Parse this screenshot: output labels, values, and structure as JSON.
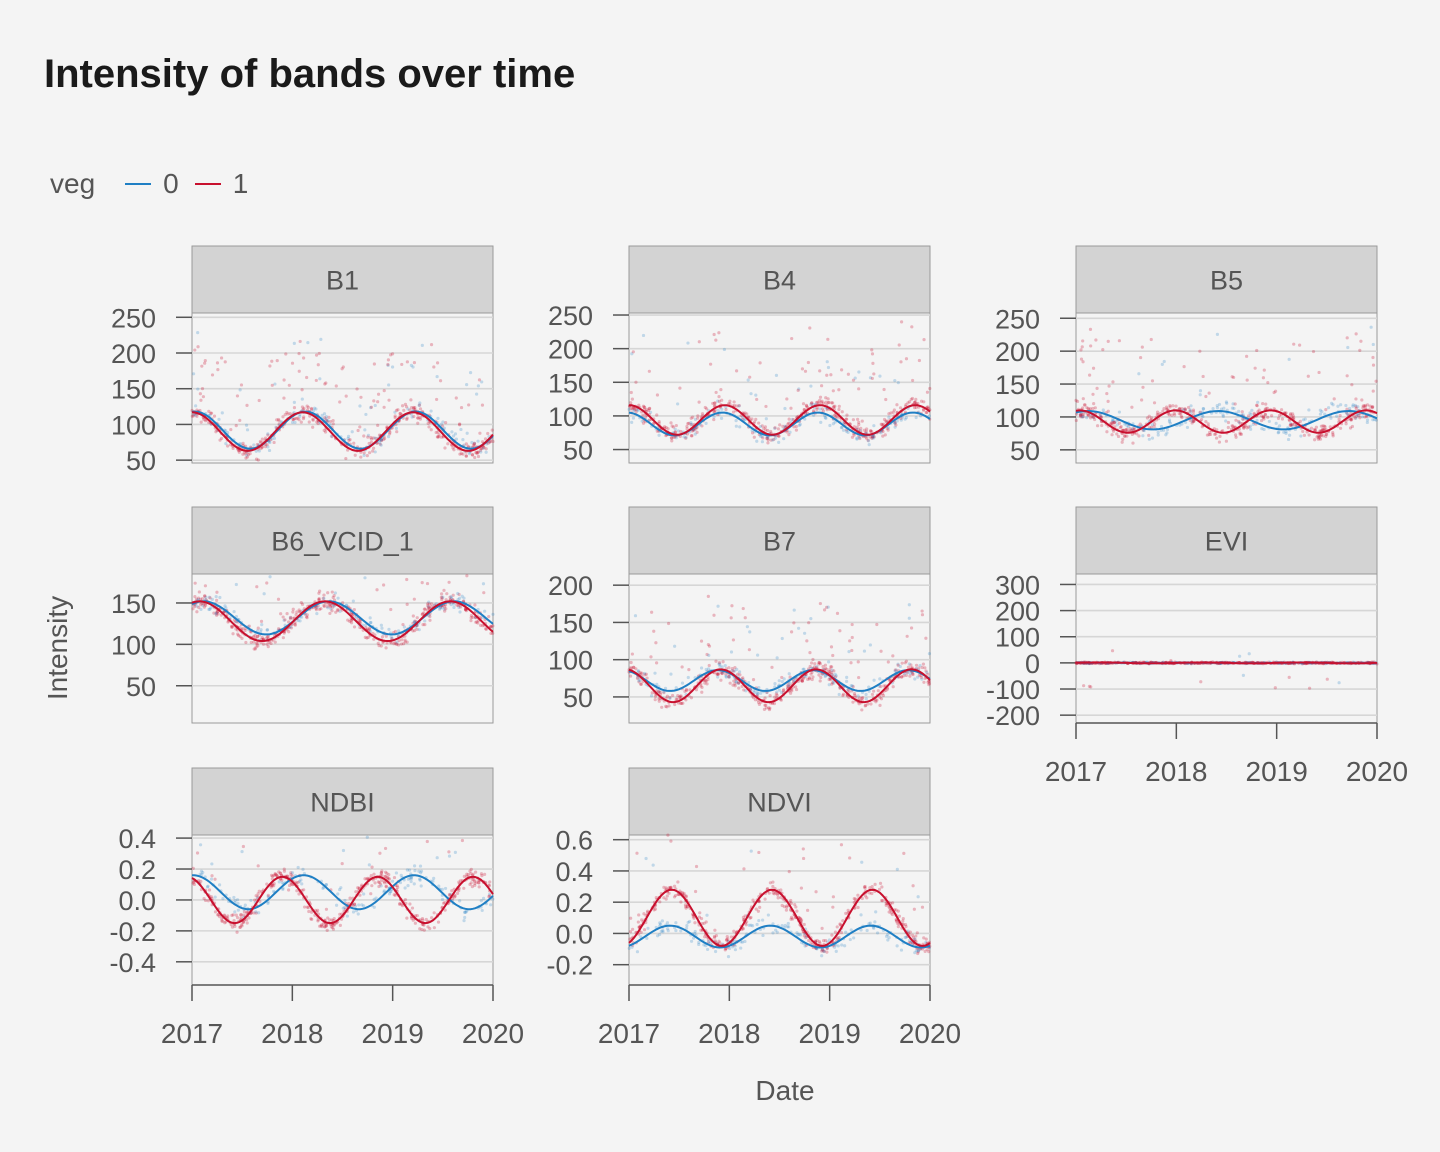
{
  "chart_data": {
    "type": "scatter",
    "title": "Intensity of bands over time",
    "xlabel": "Date",
    "ylabel": "Intensity",
    "legend": {
      "title": "veg",
      "placement": "top-left",
      "entries": [
        {
          "name": "0",
          "color": "#1f7fc4"
        },
        {
          "name": "1",
          "color": "#c8102e"
        }
      ]
    },
    "grid": true,
    "x_ticks": [
      "2017",
      "2018",
      "2019",
      "2020"
    ],
    "xlim": [
      2017,
      2020
    ],
    "panels": [
      {
        "name": "B1",
        "ylim": [
          46,
          256
        ],
        "yticks": [
          50,
          100,
          150,
          200,
          250
        ],
        "ytick_labels": [
          "50",
          "100",
          "150",
          "200",
          "250"
        ],
        "curve0": {
          "base": 92,
          "amp": 26,
          "period": 1.1,
          "phase": 1.4
        },
        "curve1": {
          "base": 90,
          "amp": 27,
          "period": 1.1,
          "phase": 1.55
        },
        "spikes": 150
      },
      {
        "name": "B4",
        "ylim": [
          30,
          253
        ],
        "yticks": [
          50,
          100,
          150,
          200,
          250
        ],
        "ytick_labels": [
          "50",
          "100",
          "150",
          "200",
          "250"
        ],
        "curve0": {
          "base": 88,
          "amp": 17,
          "period": 0.95,
          "phase": 1.7
        },
        "curve1": {
          "base": 94,
          "amp": 22,
          "period": 0.95,
          "phase": 1.55
        },
        "spikes": 80
      },
      {
        "name": "B5",
        "ylim": [
          30,
          258
        ],
        "yticks": [
          50,
          100,
          150,
          200,
          250
        ],
        "ytick_labels": [
          "50",
          "100",
          "150",
          "200",
          "250"
        ],
        "curve0": {
          "base": 95,
          "amp": 14,
          "period": 1.3,
          "phase": 1.0
        },
        "curve1": {
          "base": 93,
          "amp": 17,
          "period": 0.95,
          "phase": 1.3
        },
        "spikes": 90
      },
      {
        "name": "B6_VCID_1",
        "ylim": [
          5,
          185
        ],
        "yticks": [
          50,
          100,
          150
        ],
        "ytick_labels": [
          "50",
          "100",
          "150"
        ],
        "curve0": {
          "base": 132,
          "amp": 20,
          "period": 1.25,
          "phase": 1.0
        },
        "curve1": {
          "base": 128,
          "amp": 24,
          "period": 1.25,
          "phase": 1.2
        },
        "spikes": 70
      },
      {
        "name": "B7",
        "ylim": [
          15,
          215
        ],
        "yticks": [
          50,
          100,
          150,
          200
        ],
        "ytick_labels": [
          "50",
          "100",
          "150",
          "200"
        ],
        "curve0": {
          "base": 72,
          "amp": 14,
          "period": 0.95,
          "phase": 2.0
        },
        "curve1": {
          "base": 65,
          "amp": 22,
          "period": 0.95,
          "phase": 1.8
        },
        "spikes": 80
      },
      {
        "name": "EVI",
        "ylim": [
          -230,
          340
        ],
        "yticks": [
          -200,
          -100,
          0,
          100,
          200,
          300
        ],
        "ytick_labels": [
          "-200",
          "-100",
          "0",
          "100",
          "200",
          "300"
        ],
        "curve0": {
          "base": 0,
          "amp": 1,
          "period": 1,
          "phase": 0
        },
        "curve1": {
          "base": 0,
          "amp": 1.5,
          "period": 1,
          "phase": 0
        },
        "spikes": 0
      },
      {
        "name": "NDBI",
        "ylim": [
          -0.55,
          0.42
        ],
        "yticks": [
          -0.4,
          -0.2,
          0.0,
          0.2,
          0.4
        ],
        "ytick_labels": [
          "-0.4",
          "-0.2",
          "0.0",
          "0.2",
          "0.4"
        ],
        "curve0": {
          "base": 0.05,
          "amp": 0.11,
          "period": 1.1,
          "phase": 1.5
        },
        "curve1": {
          "base": 0.0,
          "amp": 0.15,
          "period": 0.95,
          "phase": 1.9
        },
        "spikes": 40
      },
      {
        "name": "NDVI",
        "ylim": [
          -0.33,
          0.63
        ],
        "yticks": [
          -0.2,
          0.0,
          0.2,
          0.4,
          0.6
        ],
        "ytick_labels": [
          "-0.2",
          "0.0",
          "0.2",
          "0.4",
          "0.6"
        ],
        "curve0": {
          "base": -0.02,
          "amp": 0.07,
          "period": 1.0,
          "phase": -1.0
        },
        "curve1": {
          "base": 0.1,
          "amp": 0.18,
          "period": 1.0,
          "phase": -1.1
        },
        "spikes": 50
      }
    ]
  }
}
